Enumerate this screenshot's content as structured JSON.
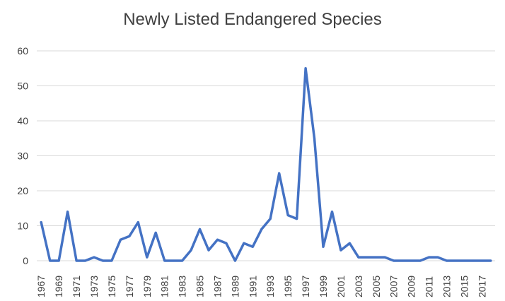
{
  "chart_data": {
    "type": "line",
    "title": "Newly Listed Endangered Species",
    "xlabel": "",
    "ylabel": "",
    "ylim": [
      0,
      60
    ],
    "yticks": [
      0,
      10,
      20,
      30,
      40,
      50,
      60
    ],
    "grid": true,
    "legend": "none",
    "line_color": "#4472c4",
    "x": [
      1967,
      1968,
      1969,
      1970,
      1971,
      1972,
      1973,
      1974,
      1975,
      1976,
      1977,
      1978,
      1979,
      1980,
      1981,
      1982,
      1983,
      1984,
      1985,
      1986,
      1987,
      1988,
      1989,
      1990,
      1991,
      1992,
      1993,
      1994,
      1995,
      1996,
      1997,
      1998,
      1999,
      2000,
      2001,
      2002,
      2003,
      2004,
      2005,
      2006,
      2007,
      2008,
      2009,
      2010,
      2011,
      2012,
      2013,
      2014,
      2015,
      2016,
      2017,
      2018
    ],
    "xtick_labels": [
      "1967",
      "1969",
      "1971",
      "1973",
      "1975",
      "1977",
      "1979",
      "1981",
      "1983",
      "1985",
      "1987",
      "1989",
      "1991",
      "1993",
      "1995",
      "1997",
      "1999",
      "2001",
      "2003",
      "2005",
      "2007",
      "2009",
      "2011",
      "2013",
      "2015",
      "2017"
    ],
    "series": [
      {
        "values": [
          11,
          0,
          0,
          14,
          0,
          0,
          1,
          0,
          0,
          6,
          7,
          11,
          1,
          8,
          0,
          0,
          0,
          3,
          9,
          3,
          6,
          5,
          0,
          5,
          4,
          9,
          12,
          25,
          13,
          12,
          55,
          35,
          4,
          14,
          3,
          5,
          1,
          1,
          1,
          1,
          0,
          0,
          0,
          0,
          1,
          1,
          0,
          0,
          0,
          0,
          0,
          0
        ]
      }
    ]
  }
}
